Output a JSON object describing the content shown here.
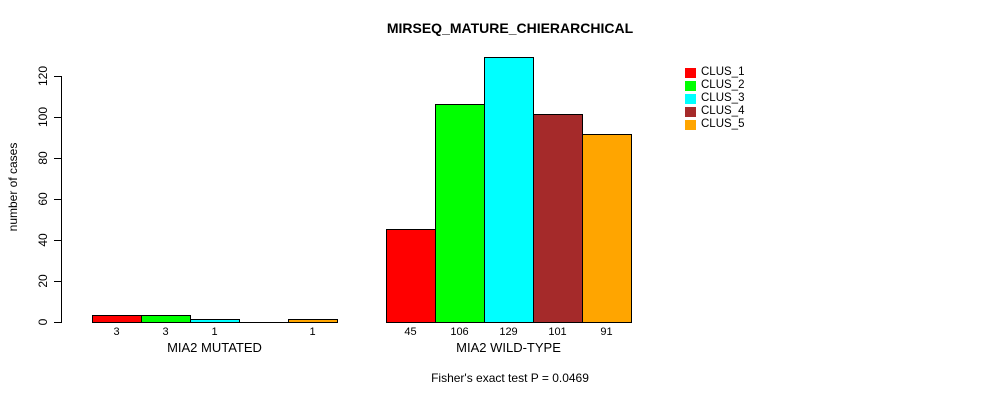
{
  "title": "MIRSEQ_MATURE_CHIERARCHICAL",
  "footer": "Fisher's exact test P = 0.0469",
  "chart_data": {
    "type": "bar",
    "title": "MIRSEQ_MATURE_CHIERARCHICAL",
    "subtitle": "Fisher's exact test P = 0.0469",
    "xlabel": "",
    "ylabel": "number of cases",
    "ylim": [
      0,
      130
    ],
    "yticks": [
      0,
      20,
      40,
      60,
      80,
      100,
      120
    ],
    "grid": false,
    "legend_position": "right",
    "categories": [
      "MIA2 MUTATED",
      "MIA2 WILD-TYPE"
    ],
    "series": [
      {
        "name": "CLUS_1",
        "color": "#FF0000",
        "values": [
          3,
          45
        ]
      },
      {
        "name": "CLUS_2",
        "color": "#00FF00",
        "values": [
          3,
          106
        ]
      },
      {
        "name": "CLUS_3",
        "color": "#00FFFF",
        "values": [
          1,
          129
        ]
      },
      {
        "name": "CLUS_4",
        "color": "#A52A2A",
        "values": [
          0,
          101
        ]
      },
      {
        "name": "CLUS_5",
        "color": "#FFA500",
        "values": [
          1,
          91
        ]
      }
    ],
    "groups": [
      {
        "label": "MIA2 MUTATED",
        "values": [
          3,
          3,
          1,
          0,
          1
        ]
      },
      {
        "label": "MIA2 WILD-TYPE",
        "values": [
          45,
          106,
          129,
          101,
          91
        ]
      }
    ],
    "bar_value_labels_shown": true,
    "legend": [
      {
        "label": "CLUS_1",
        "color": "#FF0000"
      },
      {
        "label": "CLUS_2",
        "color": "#00FF00"
      },
      {
        "label": "CLUS_3",
        "color": "#00FFFF"
      },
      {
        "label": "CLUS_4",
        "color": "#A52A2A"
      },
      {
        "label": "CLUS_5",
        "color": "#FFA500"
      }
    ]
  },
  "colors": {
    "foreground": "#000000",
    "background": "#FFFFFF"
  }
}
